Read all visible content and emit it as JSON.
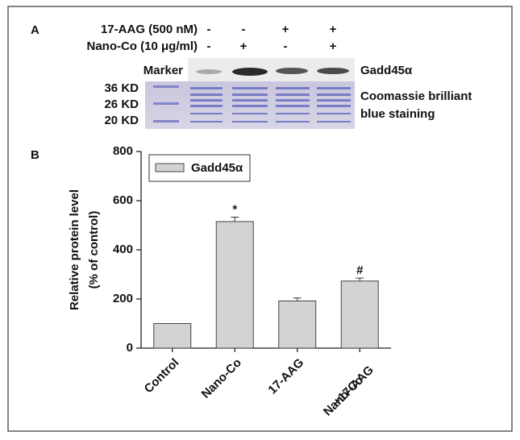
{
  "panel_a": {
    "label": "A",
    "rows": [
      {
        "name": "17-AAG (500 nM)",
        "signs": [
          "-",
          "-",
          "+",
          "+"
        ]
      },
      {
        "name": "Nano-Co (10 μg/ml)",
        "signs": [
          "-",
          "+",
          "-",
          "+"
        ]
      }
    ],
    "marker": "Marker",
    "blot_label": "Gadd45α",
    "ladder": [
      "36 KD",
      "26 KD",
      "20 KD"
    ],
    "gel_label": [
      "Coomassie brilliant",
      "blue staining"
    ]
  },
  "chart_data": {
    "type": "bar",
    "panel_label": "B",
    "y_label": [
      "Relative protein level",
      "(% of control)"
    ],
    "categories": [
      [
        "Control"
      ],
      [
        "Nano-Co"
      ],
      [
        "17-AAG"
      ],
      [
        "Nano-Co",
        "+17-AAG"
      ]
    ],
    "series": [
      {
        "name": "Gadd45α",
        "color": "#d3d3d3",
        "values": [
          100,
          515,
          192,
          273
        ],
        "errors": [
          null,
          18,
          12,
          12
        ]
      }
    ],
    "significance": [
      null,
      "*",
      null,
      "#"
    ],
    "ylim": [
      0,
      800
    ],
    "yticks": [
      0,
      200,
      400,
      600,
      800
    ],
    "legend": "upper-left"
  }
}
